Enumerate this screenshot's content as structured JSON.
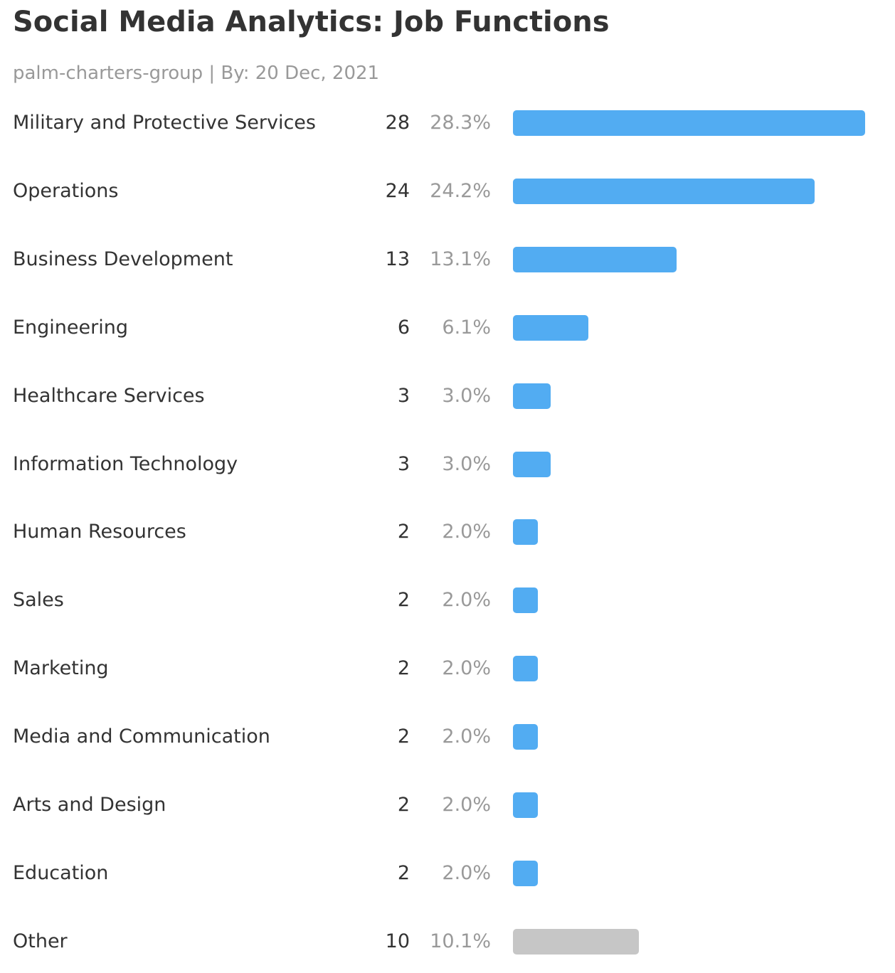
{
  "header": {
    "title": "Social Media Analytics: Job Functions",
    "subtitle": "palm-charters-group | By: 20 Dec, 2021"
  },
  "colors": {
    "bar": "#52acf2",
    "other_bar": "#c6c6c6"
  },
  "chart_data": {
    "type": "bar",
    "orientation": "horizontal",
    "title": "Social Media Analytics: Job Functions",
    "subtitle": "palm-charters-group | By: 20 Dec, 2021",
    "xlabel": "",
    "ylabel": "",
    "xlim": [
      0,
      28
    ],
    "grid": false,
    "rows": [
      {
        "label": "Military and Protective Services",
        "count": 28,
        "pct_label": "28.3%",
        "other": false
      },
      {
        "label": "Operations",
        "count": 24,
        "pct_label": "24.2%",
        "other": false
      },
      {
        "label": "Business Development",
        "count": 13,
        "pct_label": "13.1%",
        "other": false
      },
      {
        "label": "Engineering",
        "count": 6,
        "pct_label": "6.1%",
        "other": false
      },
      {
        "label": "Healthcare Services",
        "count": 3,
        "pct_label": "3.0%",
        "other": false
      },
      {
        "label": "Information Technology",
        "count": 3,
        "pct_label": "3.0%",
        "other": false
      },
      {
        "label": "Human Resources",
        "count": 2,
        "pct_label": "2.0%",
        "other": false
      },
      {
        "label": "Sales",
        "count": 2,
        "pct_label": "2.0%",
        "other": false
      },
      {
        "label": "Marketing",
        "count": 2,
        "pct_label": "2.0%",
        "other": false
      },
      {
        "label": "Media and Communication",
        "count": 2,
        "pct_label": "2.0%",
        "other": false
      },
      {
        "label": "Arts and Design",
        "count": 2,
        "pct_label": "2.0%",
        "other": false
      },
      {
        "label": "Education",
        "count": 2,
        "pct_label": "2.0%",
        "other": false
      },
      {
        "label": "Other",
        "count": 10,
        "pct_label": "10.1%",
        "other": true
      }
    ]
  }
}
